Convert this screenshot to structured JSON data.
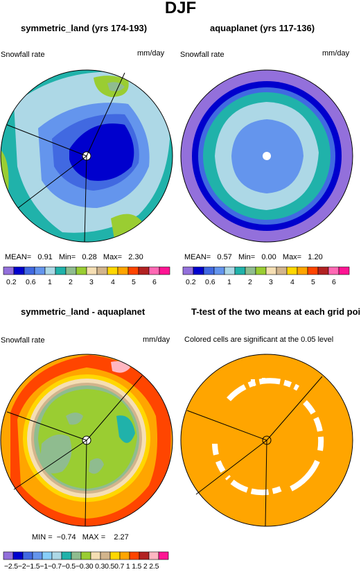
{
  "title": "DJF",
  "panels": [
    {
      "name": "symmetric_land",
      "title": "symmetric_land (yrs 174-193)",
      "variable": "Snowfall rate",
      "units": "mm/day",
      "stats": {
        "mean_label": "MEAN=",
        "mean": "0.91",
        "min_label": "Min=",
        "min": "0.28",
        "max_label": "Max=",
        "max": "2.30"
      },
      "colorbar_labels": [
        "0.2",
        "0.6",
        "1",
        "2",
        "3",
        "4",
        "5",
        "6"
      ]
    },
    {
      "name": "aquaplanet",
      "title": "aquaplanet (yrs 117-136)",
      "variable": "Snowfall rate",
      "units": "mm/day",
      "stats": {
        "mean_label": "MEAN=",
        "mean": "0.57",
        "min_label": "Min=",
        "min": "0.00",
        "max_label": "Max=",
        "max": "1.20"
      },
      "colorbar_labels": [
        "0.2",
        "0.6",
        "1",
        "2",
        "3",
        "4",
        "5",
        "6"
      ]
    },
    {
      "name": "difference",
      "title": "symmetric_land - aquaplanet",
      "variable": "Snowfall rate",
      "units": "mm/day",
      "stats": {
        "min_label": "MIN =",
        "min": "−0.74",
        "max_label": "MAX =",
        "max": "2.27"
      },
      "colorbar_labels": "−2.5−2−1.5−1−0.7−0.5−0.30 0.30.50.7 1 1.5 2 2.5"
    },
    {
      "name": "ttest",
      "title": "T-test of the two means at each grid point",
      "subtitle": "Colored cells are significant at the 0.05 level"
    }
  ],
  "colors": {
    "field_palette": [
      "#9370db",
      "#0000cd",
      "#4169e1",
      "#6495ed",
      "#add8e6",
      "#20b2aa",
      "#8fbc8f",
      "#9acd32",
      "#f5deb3",
      "#d2b48c",
      "#ffd700",
      "#ffa500",
      "#ff4500",
      "#b22222",
      "#ff69b4",
      "#ff1493"
    ],
    "diff_palette": [
      "#9370db",
      "#0000cd",
      "#4169e1",
      "#6495ed",
      "#87cefa",
      "#add8e6",
      "#20b2aa",
      "#8fbc8f",
      "#9acd32",
      "#f5deb3",
      "#d2b48c",
      "#ffd700",
      "#ffa500",
      "#ff4500",
      "#b22222",
      "#ffb6c1",
      "#ff1493"
    ],
    "ttest_fill": "#ffa500"
  },
  "chart_data": [
    {
      "type": "heatmap",
      "projection": "polar stereographic",
      "title": "symmetric_land (yrs 174-193)",
      "units": "mm/day",
      "mean": 0.91,
      "min": 0.28,
      "max": 2.3,
      "levels": [
        0.2,
        0.4,
        0.6,
        0.8,
        1,
        1.5,
        2,
        2.5,
        3,
        3.5,
        4,
        4.5,
        5,
        5.5,
        6
      ]
    },
    {
      "type": "heatmap",
      "projection": "polar stereographic",
      "title": "aquaplanet (yrs 117-136)",
      "units": "mm/day",
      "mean": 0.57,
      "min": 0.0,
      "max": 1.2,
      "levels": [
        0.2,
        0.4,
        0.6,
        0.8,
        1,
        1.5,
        2,
        2.5,
        3,
        3.5,
        4,
        4.5,
        5,
        5.5,
        6
      ]
    },
    {
      "type": "heatmap",
      "projection": "polar stereographic",
      "title": "symmetric_land - aquaplanet",
      "units": "mm/day",
      "min": -0.74,
      "max": 2.27,
      "levels": [
        -2.5,
        -2,
        -1.5,
        -1,
        -0.7,
        -0.5,
        -0.3,
        0,
        0.3,
        0.5,
        0.7,
        1,
        1.5,
        2,
        2.5
      ]
    },
    {
      "type": "heatmap",
      "projection": "polar stereographic",
      "title": "T-test of the two means at each grid point",
      "note": "Colored cells are significant at the 0.05 level"
    }
  ]
}
